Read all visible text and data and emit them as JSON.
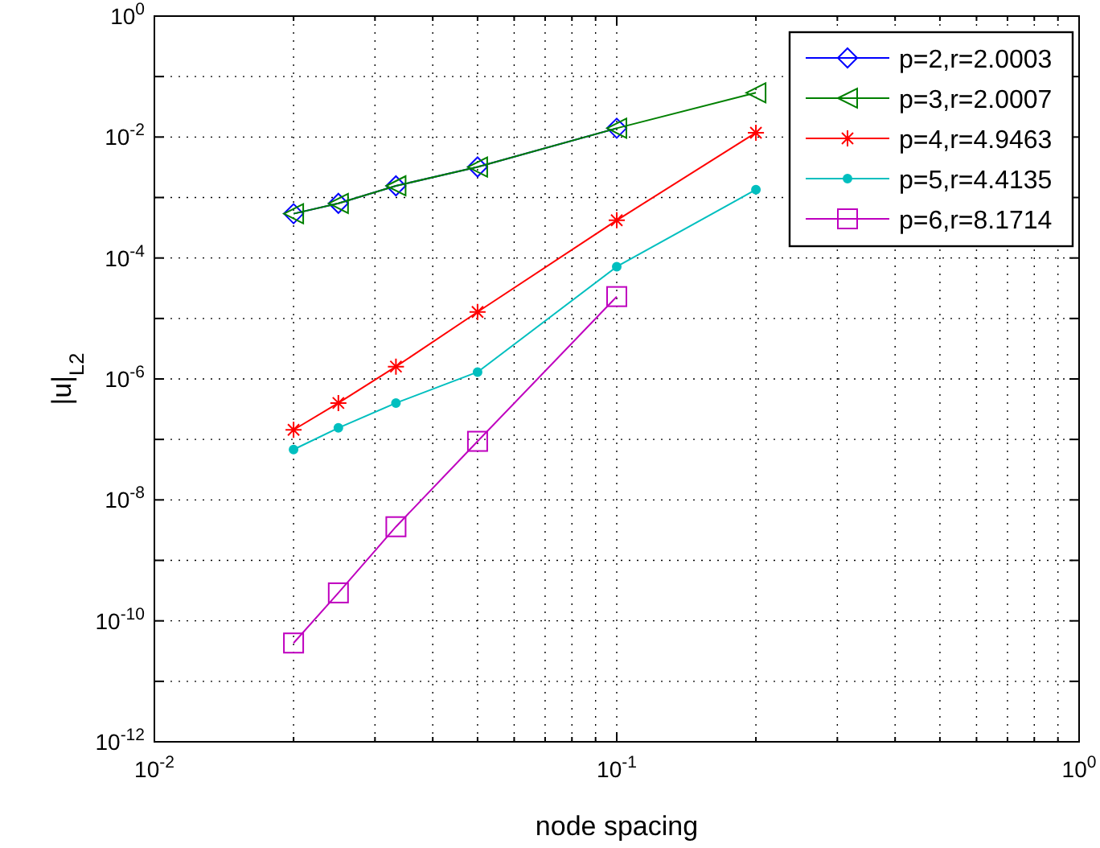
{
  "chart_data": {
    "type": "line",
    "xlabel": "node spacing",
    "ylabel": "|u|$_{L2}$",
    "log": "xy",
    "grid": true,
    "legend": "top right",
    "xlim": [
      0.01,
      1
    ],
    "xticks": [
      {
        "value": 0.01,
        "label": "10$^{-2}$"
      },
      {
        "value": 0.1,
        "label": "10$^{-1}$"
      },
      {
        "value": 1,
        "label": "10$^{0}$"
      }
    ],
    "ylim": [
      1e-12,
      1
    ],
    "yticks": [
      {
        "value": 1e-12,
        "label": "10$^{-12}$"
      },
      {
        "value": 1e-10,
        "label": "10$^{-10}$"
      },
      {
        "value": 1e-08,
        "label": "10$^{-8}$"
      },
      {
        "value": 1e-06,
        "label": "10$^{-6}$"
      },
      {
        "value": 0.0001,
        "label": "10$^{-4}$"
      },
      {
        "value": 0.01,
        "label": "10$^{-2}$"
      },
      {
        "value": 1,
        "label": "10$^{0}$"
      }
    ],
    "series": [
      {
        "name": "p=2,r=2.0003",
        "color": "#0000ff",
        "marker": "diamond",
        "x": [
          0.02,
          0.025,
          0.0333,
          0.05,
          0.1
        ],
        "values": [
          0.00054,
          0.0008,
          0.00156,
          0.0032,
          0.014
        ]
      },
      {
        "name": "p=3,r=2.0007",
        "color": "#008000",
        "marker": "triangle",
        "x": [
          0.02,
          0.025,
          0.0333,
          0.05,
          0.1,
          0.2
        ],
        "values": [
          0.00054,
          0.0008,
          0.00156,
          0.0032,
          0.014,
          0.054
        ]
      },
      {
        "name": "p=4,r=4.9463",
        "color": "#ff0000",
        "marker": "cross",
        "x": [
          0.02,
          0.025,
          0.0333,
          0.05,
          0.1,
          0.2
        ],
        "values": [
          1.44e-07,
          4e-07,
          1.6e-06,
          1.28e-05,
          0.00042,
          0.0118
        ]
      },
      {
        "name": "p=5,r=4.4135",
        "color": "#00bfbf",
        "marker": "circle",
        "x": [
          0.02,
          0.025,
          0.0333,
          0.05,
          0.1,
          0.2
        ],
        "values": [
          6.8e-08,
          1.55e-07,
          4e-07,
          1.3e-06,
          7.2e-05,
          0.00135
        ]
      },
      {
        "name": "p=6,r=8.1714",
        "color": "#bf00bf",
        "marker": "square",
        "x": [
          0.02,
          0.025,
          0.0333,
          0.05,
          0.1
        ],
        "values": [
          4.3e-11,
          2.9e-10,
          3.6e-09,
          9.3e-08,
          2.3e-05
        ]
      }
    ]
  }
}
